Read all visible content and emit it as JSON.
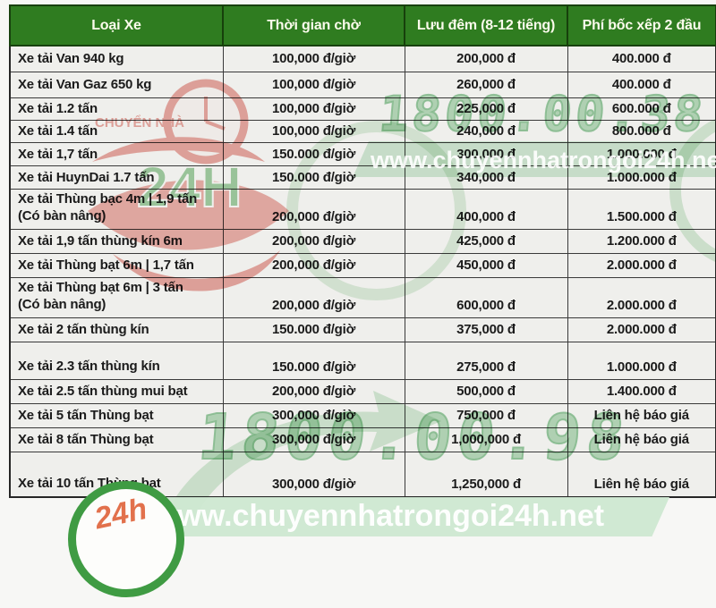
{
  "table": {
    "columns": [
      "Loại Xe",
      "Thời gian chờ",
      "Lưu đêm (8-12 tiếng)",
      "Phí bốc xếp 2 đầu"
    ],
    "rows": [
      {
        "vehicle": "Xe tải Van 940 kg",
        "wait_fee": "100,000 đ/giờ",
        "overnight_fee": "200,000 đ",
        "loading_fee": "400.000 đ"
      },
      {
        "vehicle": "Xe tải Van Gaz 650 kg",
        "wait_fee": "100,000 đ/giờ",
        "overnight_fee": "260,000 đ",
        "loading_fee": "400.000 đ"
      },
      {
        "vehicle": "Xe tải 1.2 tấn",
        "wait_fee": "100,000 đ/giờ",
        "overnight_fee": "225,000 đ",
        "loading_fee": "600.000 đ"
      },
      {
        "vehicle": "Xe tải 1.4 tấn",
        "wait_fee": "100,000 đ/giờ",
        "overnight_fee": "240,000 đ",
        "loading_fee": "800.000 đ"
      },
      {
        "vehicle": "Xe tải 1,7 tấn",
        "wait_fee": "150.000 đ/giờ",
        "overnight_fee": "300,000 đ",
        "loading_fee": "1.000.000 đ"
      },
      {
        "vehicle": "Xe tải HuynDai 1.7 tấn",
        "wait_fee": "150.000 đ/giờ",
        "overnight_fee": "340,000 đ",
        "loading_fee": "1.000.000 đ"
      },
      {
        "vehicle": "Xe tải Thùng bạc 4m | 1,9 tấn\n(Có bàn nâng)",
        "wait_fee": "200,000 đ/giờ",
        "overnight_fee": "400,000 đ",
        "loading_fee": "1.500.000 đ"
      },
      {
        "vehicle": "Xe tải 1,9 tấn thùng kín 6m",
        "wait_fee": "200,000 đ/giờ",
        "overnight_fee": "425,000 đ",
        "loading_fee": "1.200.000 đ"
      },
      {
        "vehicle": "Xe tải Thùng bạt 6m | 1,7 tấn",
        "wait_fee": "200,000 đ/giờ",
        "overnight_fee": "450,000 đ",
        "loading_fee": "2.000.000 đ"
      },
      {
        "vehicle": "Xe tải Thùng bạt 6m | 3 tấn\n(Có bàn nâng)",
        "wait_fee": "200,000 đ/giờ",
        "overnight_fee": "600,000 đ",
        "loading_fee": "2.000.000 đ"
      },
      {
        "vehicle": "Xe tải 2 tấn thùng kín",
        "wait_fee": "150.000 đ/giờ",
        "overnight_fee": "375,000 đ",
        "loading_fee": "2.000.000 đ"
      },
      {
        "vehicle": "Xe tải 2.3 tấn thùng kín",
        "wait_fee": "150.000 đ/giờ",
        "overnight_fee": "275,000 đ",
        "loading_fee": "1.000.000 đ"
      },
      {
        "vehicle": "Xe tải 2.5 tấn thùng mui bạt",
        "wait_fee": "200,000 đ/giờ",
        "overnight_fee": "500,000 đ",
        "loading_fee": "1.400.000 đ"
      },
      {
        "vehicle": "Xe tải 5 tấn Thùng bạt",
        "wait_fee": "300,000 đ/giờ",
        "overnight_fee": "750,000 đ",
        "loading_fee": "Liên hệ báo giá"
      },
      {
        "vehicle": "Xe tải 8 tấn Thùng bạt",
        "wait_fee": "300,000 đ/giờ",
        "overnight_fee": "1,000,000 đ",
        "loading_fee": "Liên hệ báo giá"
      },
      {
        "vehicle": "Xe tải 10 tấn Thùng bạt",
        "wait_fee": "300,000 đ/giờ",
        "overnight_fee": "1,250,000 đ",
        "loading_fee": "Liên hệ báo giá"
      }
    ]
  },
  "watermarks": {
    "hotline_top": "1800.00.38",
    "hotline_bottom": "1800.00.98",
    "website_mid": "www.chuyennhatrongoi24h.net",
    "website_bottom": "www.chuyennhatrongoi24h.net",
    "logo_brand": "CHUYỂN NHÀ",
    "logo_24h": "24H",
    "badge_24h": "24h"
  },
  "colors": {
    "header_green": "#2f7c20",
    "logo_red": "#d8564a",
    "logo_green": "#47a14b",
    "watermark_green": "#cde8d1"
  }
}
